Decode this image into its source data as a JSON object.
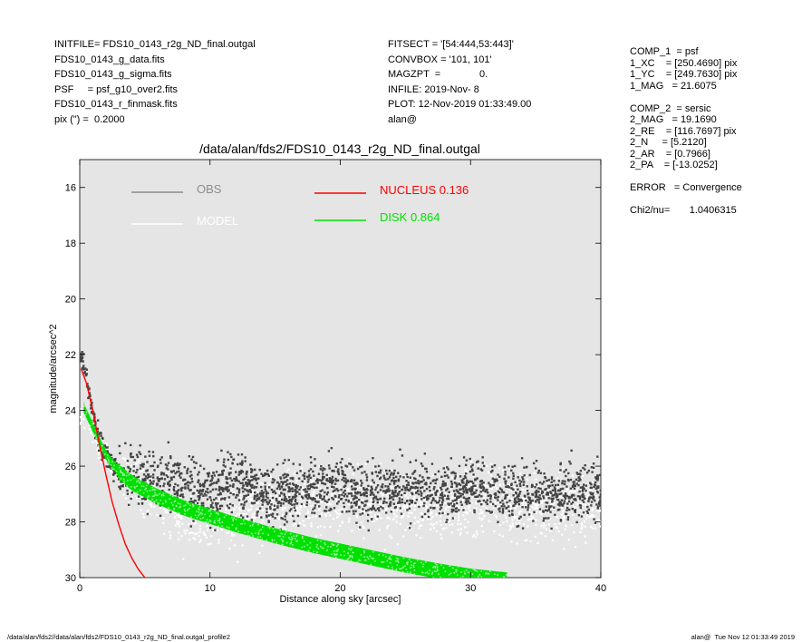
{
  "header_left": [
    "INITFILE= FDS10_0143_r2g_ND_final.outgal",
    "FDS10_0143_g_data.fits",
    "FDS10_0143_g_sigma.fits",
    "PSF     = psf_g10_over2.fits",
    "FDS10_0143_r_finmask.fits",
    "pix (\") =  0.2000"
  ],
  "header_mid": [
    "FITSECT = '[54:444,53:443]'",
    "CONVBOX = '101, 101'",
    "MAGZPT  =              0.",
    "INFILE: 2019-Nov- 8",
    "PLOT: 12-Nov-2019 01:33:49.00",
    "alan@"
  ],
  "header_right": [
    "COMP_1  = psf",
    "1_XC    = [250.4690] pix",
    "1_YC    = [249.7630] pix",
    "1_MAG   = 21.6075",
    "",
    "COMP_2  = sersic",
    "2_MAG   = 19.1690",
    "2_RE    = [116.7697] pix",
    "2_N     = [5.2120]",
    "2_AR    = [0.7966]",
    "2_PA    = [-13.0252]",
    "",
    "ERROR   = Convergence",
    "",
    "Chi2/nu=       1.0406315"
  ],
  "footer_left": "/data/alan/fds2//data/alan/fds2/FDS10_0143_r2g_ND_final.outgal_profile2",
  "footer_right": "alan@  Tue Nov 12 01:33:49 2019",
  "chart_data": {
    "type": "scatter",
    "title": "/data/alan/fds2/FDS10_0143_r2g_ND_final.outgal",
    "xlabel": "Distance along sky [arcsec]",
    "ylabel": "magnitude/arcsec^2",
    "xlim": [
      0,
      40
    ],
    "ylim": [
      30,
      15
    ],
    "y_inverted": true,
    "xticks": [
      0,
      10,
      20,
      30,
      40
    ],
    "yticks": [
      16,
      18,
      20,
      22,
      24,
      26,
      28,
      30
    ],
    "plot_background": "#e5e5e5",
    "legend": [
      {
        "label": "OBS",
        "color": "#8c8c8c"
      },
      {
        "label": "MODEL",
        "color": "#ffffff"
      },
      {
        "label": "NUCLEUS  0.136",
        "color": "#ff0000"
      },
      {
        "label": "DISK  0.864",
        "color": "#00e000"
      }
    ],
    "series": [
      {
        "name": "NUCLEUS",
        "color": "#ff0000",
        "kind": "line",
        "x": [
          0.1,
          0.5,
          1.0,
          1.5,
          2.0,
          2.5,
          3.0,
          3.5,
          4.0,
          4.5,
          5.0
        ],
        "y": [
          22.5,
          23.0,
          24.0,
          25.2,
          26.3,
          27.3,
          28.1,
          28.8,
          29.3,
          29.7,
          30.0
        ]
      },
      {
        "name": "DISK",
        "color": "#00e000",
        "kind": "band",
        "x": [
          0.3,
          1,
          2,
          3,
          4,
          6,
          8,
          10,
          12,
          15,
          18,
          20,
          22,
          25,
          28,
          30,
          32,
          33
        ],
        "y": [
          23.9,
          24.6,
          25.6,
          26.2,
          26.6,
          27.1,
          27.5,
          27.8,
          28.1,
          28.5,
          28.85,
          29.05,
          29.25,
          29.55,
          29.8,
          29.95,
          30.05,
          30.1
        ],
        "width": 0.55
      },
      {
        "name": "OBS",
        "color": "#444444",
        "kind": "points",
        "x": [
          0.2,
          0.5,
          1.2,
          2,
          2.5,
          3.5,
          5,
          6,
          8,
          10,
          12,
          14,
          16,
          18,
          20,
          22,
          25,
          28,
          30,
          33,
          36,
          38,
          40
        ],
        "y": [
          22.2,
          22.8,
          24.6,
          25.6,
          26.0,
          26.4,
          26.4,
          26.5,
          26.7,
          27.0,
          26.5,
          27.0,
          27.0,
          26.8,
          26.8,
          27.0,
          26.8,
          27.0,
          26.8,
          27.0,
          27.0,
          26.9,
          27.0
        ]
      },
      {
        "name": "MODEL",
        "color": "#ffffff",
        "kind": "points",
        "x": [
          0.5,
          1.5,
          2.5,
          4,
          6,
          8,
          10,
          13,
          16,
          20,
          24,
          28,
          32,
          36,
          40
        ],
        "y": [
          24.2,
          25.3,
          26.0,
          26.6,
          27.3,
          27.8,
          28.1,
          27.5,
          27.3,
          27.2,
          27.5,
          27.4,
          27.3,
          27.5,
          27.4
        ]
      }
    ]
  }
}
